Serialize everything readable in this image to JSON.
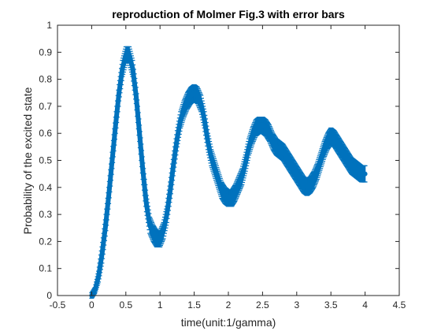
{
  "chart_data": {
    "type": "line",
    "title": "reproduction of Molmer Fig.3 with error bars",
    "xlabel": "time(unit:1/gamma)",
    "ylabel": "Probability of the excited state",
    "xlim": [
      -0.5,
      4.5
    ],
    "ylim": [
      0,
      1
    ],
    "xticks": [
      -0.5,
      0,
      0.5,
      1,
      1.5,
      2,
      2.5,
      3,
      3.5,
      4,
      4.5
    ],
    "xtick_labels": [
      "-0.5",
      "0",
      "0.5",
      "1",
      "1.5",
      "2",
      "2.5",
      "3",
      "3.5",
      "4",
      "4.5"
    ],
    "yticks": [
      0,
      0.1,
      0.2,
      0.3,
      0.4,
      0.5,
      0.6,
      0.7,
      0.8,
      0.9,
      1
    ],
    "ytick_labels": [
      "0",
      "0.1",
      "0.2",
      "0.3",
      "0.4",
      "0.5",
      "0.6",
      "0.7",
      "0.8",
      "0.9",
      "1"
    ],
    "grid": false,
    "box": true,
    "series": [
      {
        "color": "#0072bd",
        "style": "errorbar",
        "x": [
          0,
          0.05,
          0.1,
          0.15,
          0.2,
          0.25,
          0.3,
          0.35,
          0.4,
          0.45,
          0.5,
          0.55,
          0.6,
          0.65,
          0.7,
          0.75,
          0.8,
          0.85,
          0.9,
          0.95,
          1.0,
          1.05,
          1.1,
          1.15,
          1.2,
          1.25,
          1.3,
          1.35,
          1.4,
          1.45,
          1.5,
          1.55,
          1.6,
          1.65,
          1.7,
          1.75,
          1.8,
          1.85,
          1.9,
          1.95,
          2.0,
          2.05,
          2.1,
          2.15,
          2.2,
          2.25,
          2.3,
          2.35,
          2.4,
          2.45,
          2.5,
          2.55,
          2.6,
          2.65,
          2.7,
          2.75,
          2.8,
          2.85,
          2.9,
          2.95,
          3.0,
          3.05,
          3.1,
          3.15,
          3.2,
          3.25,
          3.3,
          3.35,
          3.4,
          3.45,
          3.5,
          3.55,
          3.6,
          3.65,
          3.7,
          3.75,
          3.8,
          3.85,
          3.9,
          3.95,
          4.0
        ],
        "y": [
          0.0,
          0.02,
          0.07,
          0.15,
          0.25,
          0.37,
          0.5,
          0.63,
          0.75,
          0.84,
          0.89,
          0.89,
          0.84,
          0.74,
          0.6,
          0.46,
          0.34,
          0.26,
          0.23,
          0.21,
          0.21,
          0.24,
          0.3,
          0.39,
          0.49,
          0.58,
          0.65,
          0.69,
          0.72,
          0.74,
          0.75,
          0.74,
          0.71,
          0.65,
          0.57,
          0.51,
          0.47,
          0.43,
          0.39,
          0.37,
          0.36,
          0.36,
          0.38,
          0.41,
          0.44,
          0.49,
          0.55,
          0.59,
          0.62,
          0.63,
          0.63,
          0.62,
          0.6,
          0.57,
          0.55,
          0.54,
          0.53,
          0.51,
          0.49,
          0.47,
          0.45,
          0.43,
          0.41,
          0.4,
          0.41,
          0.43,
          0.46,
          0.5,
          0.54,
          0.57,
          0.59,
          0.58,
          0.56,
          0.54,
          0.52,
          0.5,
          0.48,
          0.47,
          0.46,
          0.45,
          0.45
        ],
        "error": [
          0.01,
          0.01,
          0.02,
          0.03,
          0.03,
          0.03,
          0.03,
          0.03,
          0.03,
          0.03,
          0.03,
          0.03,
          0.03,
          0.03,
          0.03,
          0.03,
          0.03,
          0.03,
          0.03,
          0.03,
          0.03,
          0.03,
          0.03,
          0.03,
          0.03,
          0.03,
          0.03,
          0.03,
          0.03,
          0.03,
          0.03,
          0.03,
          0.03,
          0.03,
          0.03,
          0.03,
          0.03,
          0.03,
          0.03,
          0.03,
          0.03,
          0.03,
          0.03,
          0.03,
          0.03,
          0.03,
          0.03,
          0.03,
          0.03,
          0.03,
          0.03,
          0.03,
          0.03,
          0.03,
          0.03,
          0.03,
          0.03,
          0.03,
          0.03,
          0.03,
          0.03,
          0.03,
          0.03,
          0.03,
          0.03,
          0.03,
          0.03,
          0.03,
          0.03,
          0.03,
          0.03,
          0.03,
          0.03,
          0.03,
          0.03,
          0.03,
          0.03,
          0.03,
          0.03,
          0.03,
          0.03
        ]
      }
    ]
  }
}
